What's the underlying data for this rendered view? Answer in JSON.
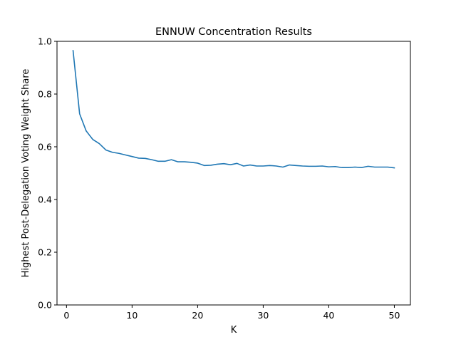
{
  "chart_data": {
    "type": "line",
    "title": "ENNUW Concentration Results",
    "xlabel": "K",
    "ylabel": "Highest Post-Delegation Voting Weight Share",
    "xlim": [
      -1.45,
      52.45
    ],
    "ylim": [
      0.0,
      1.0
    ],
    "xticks": [
      0,
      10,
      20,
      30,
      40,
      50
    ],
    "yticks": [
      0.0,
      0.2,
      0.4,
      0.6,
      0.8,
      1.0
    ],
    "xtick_labels": [
      "0",
      "10",
      "20",
      "30",
      "40",
      "50"
    ],
    "ytick_labels": [
      "0.0",
      "0.2",
      "0.4",
      "0.6",
      "0.8",
      "1.0"
    ],
    "grid": false,
    "series": [
      {
        "color": "#1f77b4",
        "x": [
          1,
          2,
          3,
          4,
          5,
          6,
          7,
          8,
          9,
          10,
          11,
          12,
          13,
          14,
          15,
          16,
          17,
          18,
          19,
          20,
          21,
          22,
          23,
          24,
          25,
          26,
          27,
          28,
          29,
          30,
          31,
          32,
          33,
          34,
          35,
          36,
          37,
          38,
          39,
          40,
          41,
          42,
          43,
          44,
          45,
          46,
          47,
          48,
          49,
          50
        ],
        "y": [
          0.965,
          0.725,
          0.66,
          0.628,
          0.612,
          0.588,
          0.579,
          0.575,
          0.569,
          0.563,
          0.557,
          0.556,
          0.551,
          0.545,
          0.545,
          0.551,
          0.543,
          0.543,
          0.541,
          0.538,
          0.529,
          0.53,
          0.534,
          0.536,
          0.532,
          0.537,
          0.527,
          0.531,
          0.527,
          0.527,
          0.529,
          0.527,
          0.523,
          0.531,
          0.529,
          0.527,
          0.526,
          0.526,
          0.527,
          0.524,
          0.525,
          0.521,
          0.521,
          0.523,
          0.521,
          0.526,
          0.523,
          0.523,
          0.523,
          0.52
        ]
      }
    ]
  }
}
